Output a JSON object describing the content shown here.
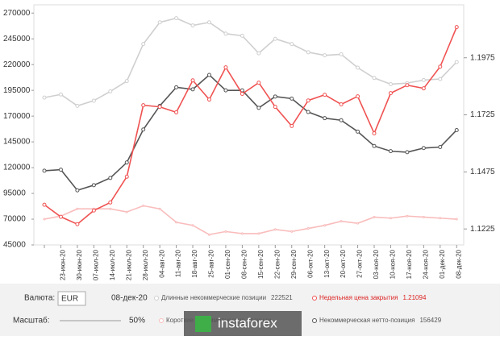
{
  "chart_data": {
    "type": "line",
    "categories": [
      null,
      "23-июн-20",
      "30-июн-20",
      "07-июл-20",
      "14-июл-20",
      "21-июл-20",
      "28-июл-20",
      "04-авг-20",
      "11-авг-20",
      "18-авг-20",
      "25-авг-20",
      "01-сен-20",
      "08-сен-20",
      "15-сен-20",
      "22-сен-20",
      "29-сен-20",
      "06-окт-20",
      "13-окт-20",
      "20-окт-20",
      "27-окт-20",
      "03-ноя-20",
      "10-ноя-20",
      "17-ноя-20",
      "24-ноя-20",
      "01-дек-20",
      "08-дек-20"
    ],
    "series": [
      {
        "name": "Длинные некоммерческие позиции",
        "color": "#cfcfcf",
        "marker": true,
        "values": [
          188000,
          191000,
          180000,
          185000,
          194000,
          204000,
          240000,
          261000,
          265000,
          258000,
          261000,
          250000,
          248000,
          231000,
          245000,
          240000,
          232000,
          229000,
          230000,
          217000,
          207000,
          201000,
          202000,
          205000,
          206000,
          222521
        ]
      },
      {
        "name": "Короткие некоммерческие позиции",
        "color": "#f9bcbc",
        "marker": false,
        "values": [
          70000,
          73000,
          80000,
          80000,
          80000,
          77000,
          83000,
          80000,
          67000,
          64000,
          55000,
          58000,
          56000,
          56000,
          60000,
          58000,
          61000,
          64000,
          68000,
          66000,
          72000,
          71000,
          73000,
          72000,
          71000,
          70000
        ]
      },
      {
        "name": "Некоммерческая нетто-позиция",
        "color": "#555555",
        "marker": true,
        "values": [
          117000,
          118000,
          98000,
          103000,
          110000,
          125000,
          157000,
          180000,
          198000,
          196000,
          210000,
          195000,
          195000,
          178000,
          189000,
          187000,
          174000,
          168000,
          166000,
          155000,
          141000,
          136000,
          135000,
          139000,
          140000,
          156429
        ]
      },
      {
        "name": "Недельная цена закрытия",
        "color": "#f05252",
        "marker": true,
        "axis": "y2",
        "values": [
          1.1331,
          1.1278,
          1.1246,
          1.1306,
          1.1341,
          1.1454,
          1.1767,
          1.176,
          1.1736,
          1.1876,
          1.1792,
          1.1933,
          1.1817,
          1.1866,
          1.176,
          1.1676,
          1.1788,
          1.1813,
          1.1771,
          1.1806,
          1.1644,
          1.182,
          1.1855,
          1.1841,
          1.1936,
          1.21094
        ]
      }
    ],
    "ylim": [
      45000,
      278000
    ],
    "yticks": [
      270000,
      245000,
      220000,
      195000,
      170000,
      145000,
      120000,
      95000,
      70000,
      45000
    ],
    "y2lim": [
      1.1155,
      1.2207
    ],
    "y2ticks": [
      1.1975,
      1.1725,
      1.1475,
      1.1225
    ]
  },
  "controls": {
    "currency_label": "Валюта:",
    "currency": "EUR",
    "scale_label": "Масштаб:",
    "scale": "50%",
    "logo": "instaforex"
  }
}
